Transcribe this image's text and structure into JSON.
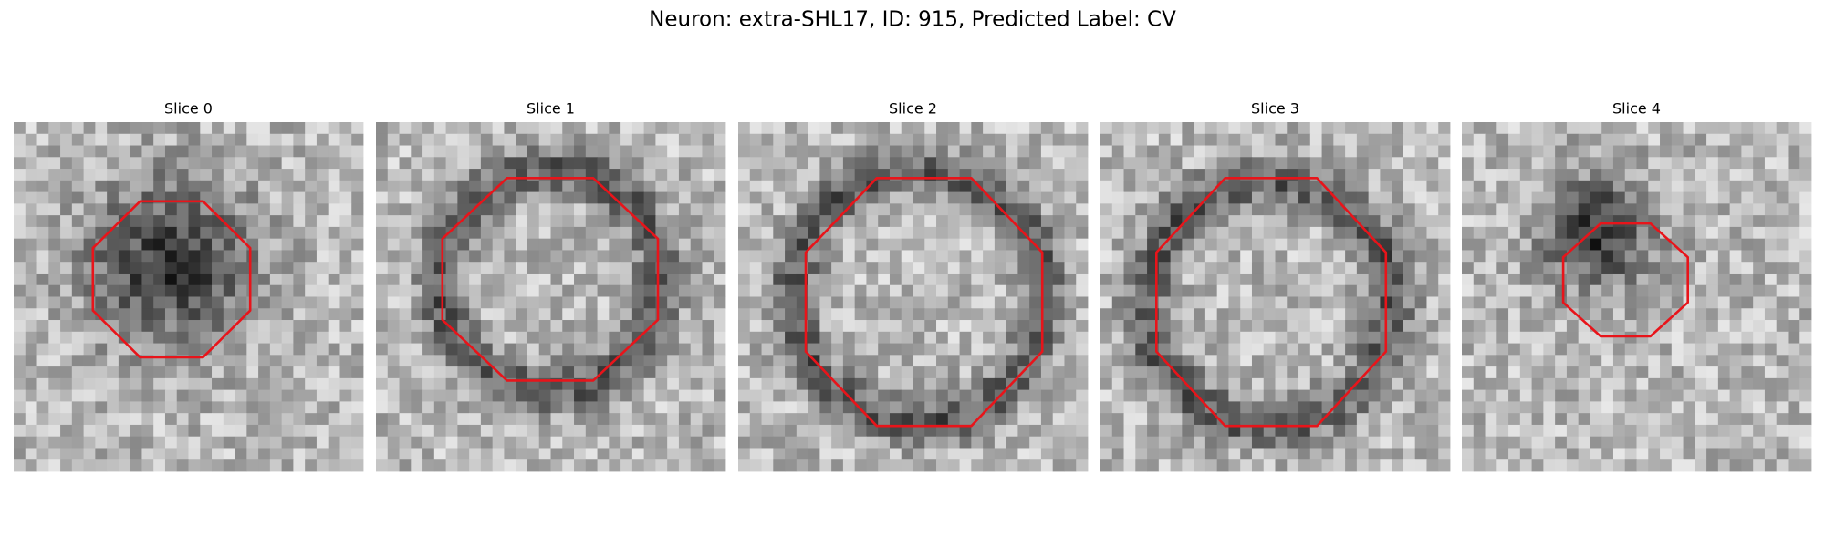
{
  "title": "Neuron: extra-SHL17, ID: 915, Predicted Label: CV",
  "panels": [
    {
      "title": "Slice 0"
    },
    {
      "title": "Slice 1"
    },
    {
      "title": "Slice 2"
    },
    {
      "title": "Slice 3"
    },
    {
      "title": "Slice 4"
    }
  ]
}
